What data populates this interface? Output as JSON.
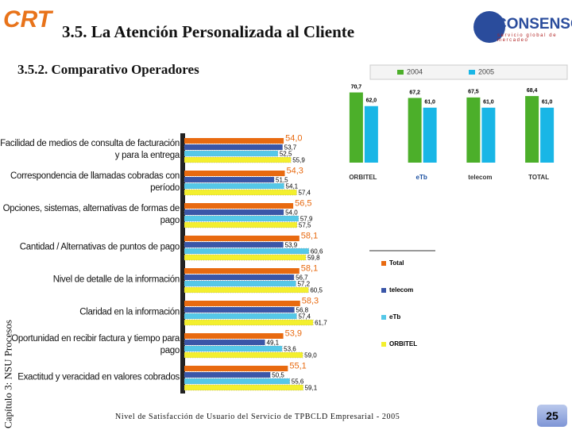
{
  "header": {
    "logo": "CRT",
    "title": "3.5. La Atención Personalizada al Cliente",
    "subtitle": "3.5.2. Comparativo Operadores",
    "brand": "CONSENSO",
    "tagline": "servicio global de mercadeo"
  },
  "sidebar": "Capítulo 3: NSU Procesos",
  "footer": {
    "text": "Nivel de Satisfacción de Usuario del Servicio de TPBCLD Empresarial - 2005",
    "page": "25"
  },
  "chart_data": [
    {
      "type": "bar",
      "categories": [
        "ORBITEL",
        "eTb",
        "telecom",
        "TOTAL"
      ],
      "ylim": [
        26,
        75
      ],
      "series": [
        {
          "name": "2004",
          "color": "#4caf2a",
          "values": [
            70.7,
            67.2,
            67.5,
            68.4
          ],
          "value_labels": [
            "70,7",
            "67,2",
            "67,5",
            "68,4"
          ]
        },
        {
          "name": "2005",
          "color": "#19b6e6",
          "values": [
            62.0,
            61.0,
            61.0,
            61.0
          ],
          "value_labels": [
            "62,0",
            "61,0",
            "61,0",
            "61,0"
          ]
        }
      ]
    },
    {
      "type": "hbar",
      "xlim": [
        28,
        65
      ],
      "categories": [
        "Facilidad de medios de consulta de facturación y para la entrega",
        "Correspondencia de llamadas cobradas con período",
        "Opciones, sistemas, alternativas de formas de pago",
        "Cantidad / Alternativas de puntos de pago",
        "Nivel de detalle de la información",
        "Claridad en la información",
        "Oportunidad en recibir factura y tiempo para pago",
        "Exactitud y veracidad en valores cobrados"
      ],
      "series": [
        {
          "name": "Total",
          "color": "#e86a10",
          "values": [
            54.0,
            54.3,
            56.5,
            58.1,
            58.1,
            58.3,
            53.9,
            55.1
          ],
          "value_labels": [
            "54,0",
            "54,3",
            "56,5",
            "58,1",
            "58,1",
            "58,3",
            "53,9",
            "55,1"
          ]
        },
        {
          "name": "telecom",
          "color": "#3a56a8",
          "values": [
            53.7,
            51.5,
            54.0,
            53.9,
            56.7,
            56.8,
            49.1,
            50.5
          ],
          "value_labels": [
            "53,7",
            "51,5",
            "54,0",
            "53,9",
            "56,7",
            "56,8",
            "49,1",
            "50,5"
          ]
        },
        {
          "name": "eTb",
          "color": "#55c8e8",
          "values": [
            52.5,
            54.1,
            57.9,
            60.6,
            57.2,
            57.4,
            53.6,
            55.6
          ],
          "value_labels": [
            "52,5",
            "54,1",
            "57,9",
            "60,6",
            "57,2",
            "57,4",
            "53,6",
            "55,6"
          ]
        },
        {
          "name": "ORBITEL",
          "color": "#f3ef2e",
          "values": [
            55.9,
            57.4,
            57.5,
            59.8,
            60.5,
            61.7,
            59.0,
            59.1
          ],
          "value_labels": [
            "55,9",
            "57,4",
            "57,5",
            "59,8",
            "60,5",
            "61,7",
            "59,0",
            "59,1"
          ]
        }
      ]
    }
  ]
}
